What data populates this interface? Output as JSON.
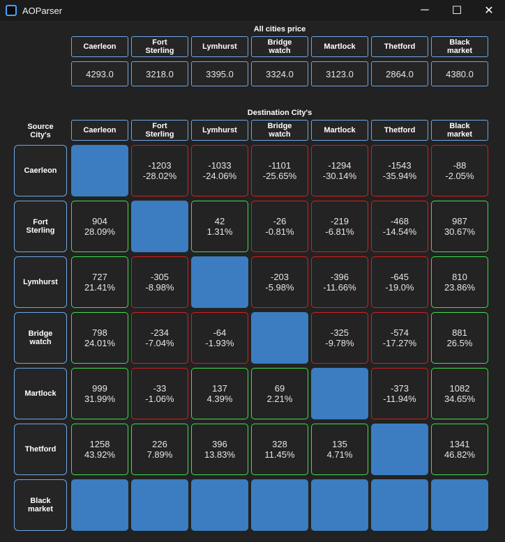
{
  "window": {
    "title": "AOParser",
    "minimize_glyph": "─",
    "maximize_glyph": "☐",
    "close_glyph": "✕"
  },
  "all_prices": {
    "title": "All cities price",
    "cities": [
      "Caerleon",
      "Fort\nSterling",
      "Lymhurst",
      "Bridge\nwatch",
      "Martlock",
      "Thetford",
      "Black\nmarket"
    ],
    "prices": [
      "4293.0",
      "3218.0",
      "3395.0",
      "3324.0",
      "3123.0",
      "2864.0",
      "4380.0"
    ]
  },
  "matrix": {
    "title": "Destination City's",
    "source_label": "Source\nCity's",
    "dest_cities": [
      "Caerleon",
      "Fort\nSterling",
      "Lymhurst",
      "Bridge\nwatch",
      "Martlock",
      "Thetford",
      "Black\nmarket"
    ],
    "rows": [
      {
        "source": "Caerleon",
        "cells": [
          null,
          {
            "diff": "-1203",
            "pct": "-28.02%"
          },
          {
            "diff": "-1033",
            "pct": "-24.06%"
          },
          {
            "diff": "-1101",
            "pct": "-25.65%"
          },
          {
            "diff": "-1294",
            "pct": "-30.14%"
          },
          {
            "diff": "-1543",
            "pct": "-35.94%"
          },
          {
            "diff": "-88",
            "pct": "-2.05%"
          }
        ]
      },
      {
        "source": "Fort\nSterling",
        "cells": [
          {
            "diff": "904",
            "pct": "28.09%"
          },
          null,
          {
            "diff": "42",
            "pct": "1.31%"
          },
          {
            "diff": "-26",
            "pct": "-0.81%"
          },
          {
            "diff": "-219",
            "pct": "-6.81%"
          },
          {
            "diff": "-468",
            "pct": "-14.54%"
          },
          {
            "diff": "987",
            "pct": "30.67%"
          }
        ]
      },
      {
        "source": "Lymhurst",
        "cells": [
          {
            "diff": "727",
            "pct": "21.41%"
          },
          {
            "diff": "-305",
            "pct": "-8.98%"
          },
          null,
          {
            "diff": "-203",
            "pct": "-5.98%"
          },
          {
            "diff": "-396",
            "pct": "-11.66%"
          },
          {
            "diff": "-645",
            "pct": "-19.0%"
          },
          {
            "diff": "810",
            "pct": "23.86%"
          }
        ]
      },
      {
        "source": "Bridge\nwatch",
        "cells": [
          {
            "diff": "798",
            "pct": "24.01%"
          },
          {
            "diff": "-234",
            "pct": "-7.04%"
          },
          {
            "diff": "-64",
            "pct": "-1.93%"
          },
          null,
          {
            "diff": "-325",
            "pct": "-9.78%"
          },
          {
            "diff": "-574",
            "pct": "-17.27%"
          },
          {
            "diff": "881",
            "pct": "26.5%"
          }
        ]
      },
      {
        "source": "Martlock",
        "cells": [
          {
            "diff": "999",
            "pct": "31.99%"
          },
          {
            "diff": "-33",
            "pct": "-1.06%"
          },
          {
            "diff": "137",
            "pct": "4.39%"
          },
          {
            "diff": "69",
            "pct": "2.21%"
          },
          null,
          {
            "diff": "-373",
            "pct": "-11.94%"
          },
          {
            "diff": "1082",
            "pct": "34.65%"
          }
        ]
      },
      {
        "source": "Thetford",
        "cells": [
          {
            "diff": "1258",
            "pct": "43.92%"
          },
          {
            "diff": "226",
            "pct": "7.89%"
          },
          {
            "diff": "396",
            "pct": "13.83%"
          },
          {
            "diff": "328",
            "pct": "11.45%"
          },
          {
            "diff": "135",
            "pct": "4.71%"
          },
          null,
          {
            "diff": "1341",
            "pct": "46.82%"
          }
        ]
      },
      {
        "source": "Black\nmarket",
        "cells": [
          null,
          null,
          null,
          null,
          null,
          null,
          null
        ]
      }
    ]
  },
  "colors": {
    "background": "#222222",
    "header_border": "#6fa7e6",
    "positive_border": "#3ee04a",
    "negative_border": "#d42020",
    "blank_fill": "#3b7dc0"
  }
}
